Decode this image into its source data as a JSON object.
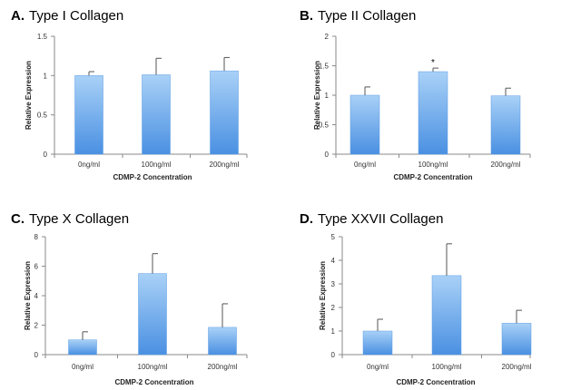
{
  "chart_data": [
    {
      "type": "bar",
      "panel_letter": "A.",
      "title": "Type I Collagen",
      "categories": [
        "0ng/ml",
        "100ng/ml",
        "200ng/ml"
      ],
      "values": [
        1.0,
        1.01,
        1.06
      ],
      "error_upper": [
        0.05,
        0.21,
        0.17
      ],
      "ylim": [
        0,
        1.5
      ],
      "yticks": [
        "0",
        "0.5",
        "1",
        "1.5"
      ],
      "ytick_values": [
        0,
        0.5,
        1,
        1.5
      ],
      "xlabel": "CDMP-2 Concentration",
      "ylabel": "Relative Expression",
      "annotations": [],
      "bar_color_top": "#a9d1f7",
      "bar_color_bottom": "#4a90e2"
    },
    {
      "type": "bar",
      "panel_letter": "B.",
      "title": "Type II Collagen",
      "categories": [
        "0ng/ml",
        "100ng/ml",
        "200ng/ml"
      ],
      "values": [
        1.0,
        1.4,
        0.99
      ],
      "error_upper": [
        0.14,
        0.06,
        0.13
      ],
      "ylim": [
        0,
        2
      ],
      "yticks": [
        "0",
        "0.5",
        "1",
        "1.5",
        "2"
      ],
      "ytick_values": [
        0,
        0.5,
        1,
        1.5,
        2
      ],
      "xlabel": "CDMP-2 Concentration",
      "ylabel": "Relative Expression",
      "annotations": [
        {
          "category_index": 1,
          "text": "*"
        }
      ],
      "bar_color_top": "#a9d1f7",
      "bar_color_bottom": "#4a90e2"
    },
    {
      "type": "bar",
      "panel_letter": "C.",
      "title": "Type X Collagen",
      "categories": [
        "0ng/ml",
        "100ng/ml",
        "200ng/ml"
      ],
      "values": [
        1.0,
        5.5,
        1.85
      ],
      "error_upper": [
        0.55,
        1.35,
        1.6
      ],
      "ylim": [
        0,
        8
      ],
      "yticks": [
        "0",
        "2",
        "4",
        "6",
        "8"
      ],
      "ytick_values": [
        0,
        2,
        4,
        6,
        8
      ],
      "xlabel": "CDMP-2 Concentration",
      "ylabel": "Relative Expression",
      "annotations": [],
      "bar_color_top": "#a9d1f7",
      "bar_color_bottom": "#4a90e2"
    },
    {
      "type": "bar",
      "panel_letter": "D.",
      "title": "Type XXVII Collagen",
      "categories": [
        "0ng/ml",
        "100ng/ml",
        "200ng/ml"
      ],
      "values": [
        1.0,
        3.35,
        1.33
      ],
      "error_upper": [
        0.5,
        1.35,
        0.55
      ],
      "ylim": [
        0,
        5
      ],
      "yticks": [
        "0",
        "1",
        "2",
        "3",
        "4",
        "5"
      ],
      "ytick_values": [
        0,
        1,
        2,
        3,
        4,
        5
      ],
      "xlabel": "CDMP-2 Concentration",
      "ylabel": "Relative Expression",
      "annotations": [],
      "bar_color_top": "#a9d1f7",
      "bar_color_bottom": "#4a90e2"
    }
  ]
}
